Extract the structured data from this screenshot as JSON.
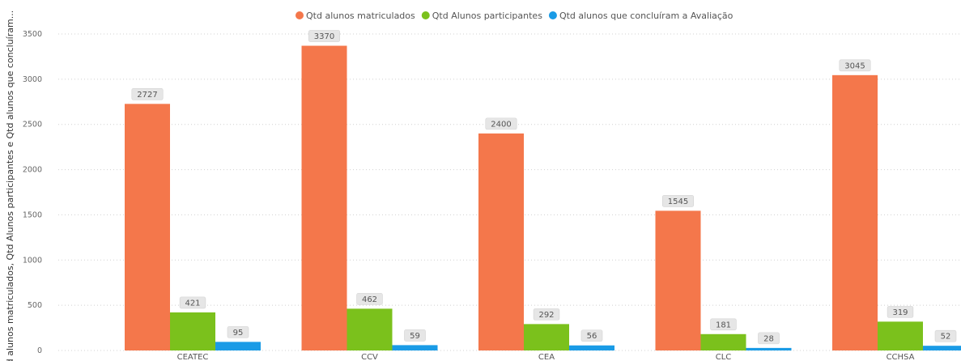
{
  "chart_data": {
    "type": "bar",
    "ylabel": "Qtd alunos matriculados, Qtd Alunos participantes e Qtd alunos que concluíram...",
    "xlabel": "",
    "ylim": [
      0,
      3500
    ],
    "yticks": [
      0,
      500,
      1000,
      1500,
      2000,
      2500,
      3000,
      3500
    ],
    "grid": true,
    "legend_position": "top-center",
    "categories": [
      "CEATEC",
      "CCV",
      "CEA",
      "CLC",
      "CCHSA"
    ],
    "series": [
      {
        "name": "Qtd alunos matriculados",
        "color": "#f4774b",
        "values": [
          2727,
          3370,
          2400,
          1545,
          3045
        ]
      },
      {
        "name": "Qtd Alunos participantes",
        "color": "#7bc11c",
        "values": [
          421,
          462,
          292,
          181,
          319
        ]
      },
      {
        "name": "Qtd alunos que concluíram a Avaliação",
        "color": "#1a9be6",
        "values": [
          95,
          59,
          56,
          28,
          52
        ]
      }
    ]
  }
}
